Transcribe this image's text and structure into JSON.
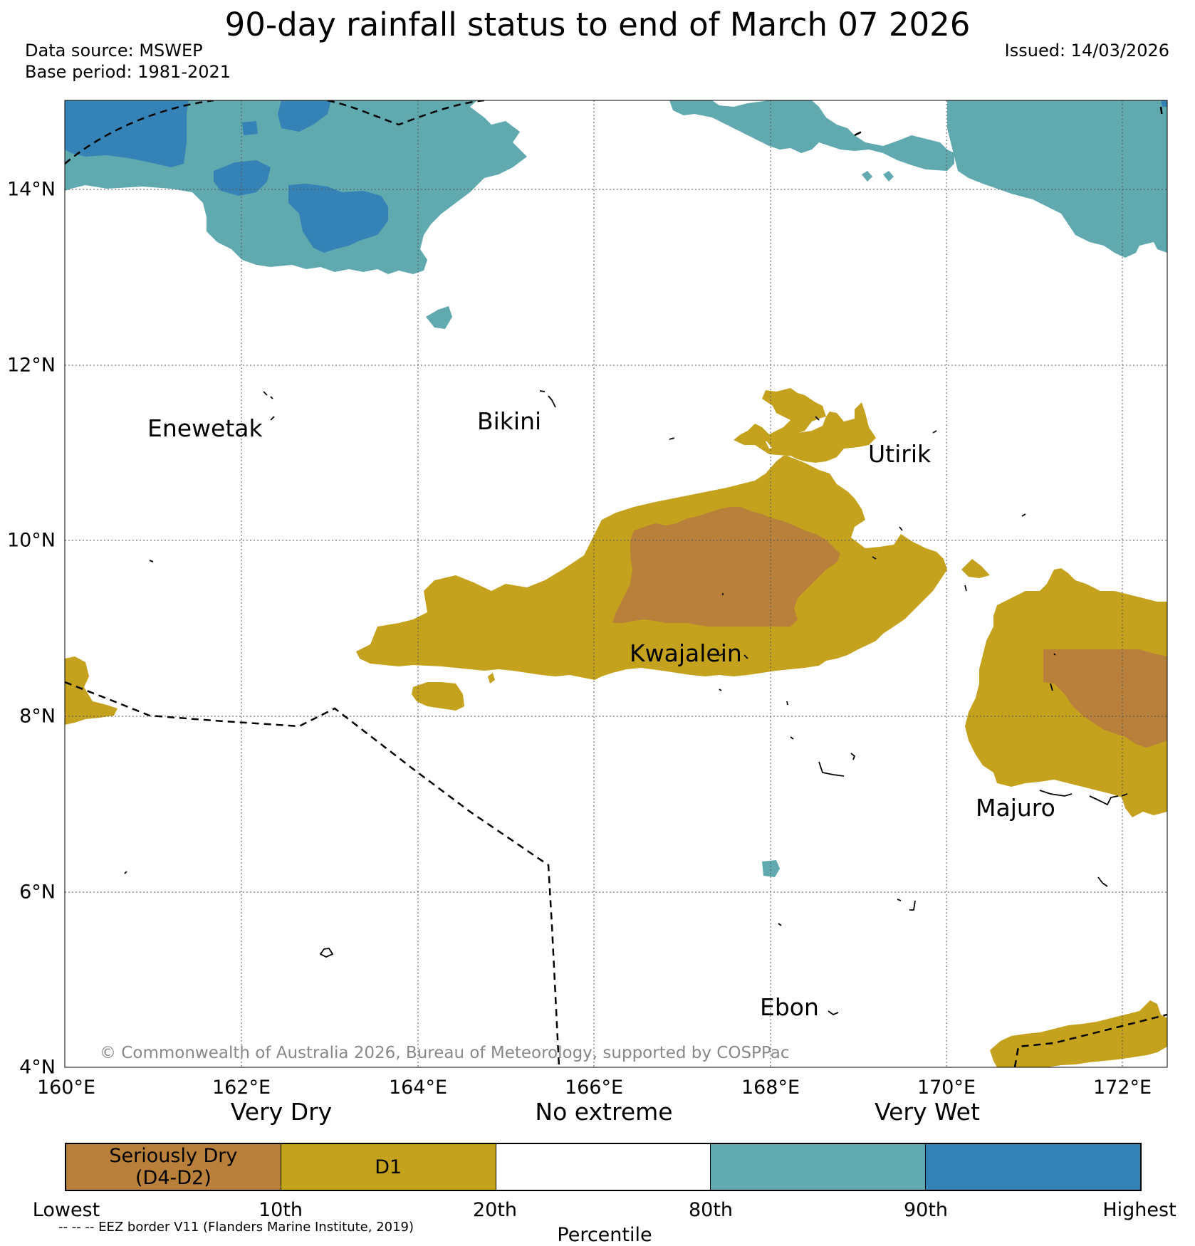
{
  "title": "90-day rainfall status to end of March 07 2026",
  "data_source": "Data source: MSWEP",
  "base_period": "Base period: 1981-2021",
  "issued": "Issued: 14/03/2026",
  "longitude_labels": [
    "160°E",
    "162°E",
    "164°E",
    "166°E",
    "168°E",
    "170°E",
    "172°E"
  ],
  "latitude_labels": [
    "14°N",
    "12°N",
    "10°N",
    "8°N",
    "6°N",
    "4°N"
  ],
  "places": [
    "Enewetak",
    "Bikini",
    "Utirik",
    "Kwajalein",
    "Majuro",
    "Ebon"
  ],
  "copyright": "© Commonwealth of Australia 2026, Bureau of Meteorology, supported by COSPPac",
  "categories": [
    "Very Dry",
    "No extreme",
    "Very Wet"
  ],
  "legend": {
    "segments": [
      {
        "label": "Seriously Dry\n(D4-D2)",
        "color": "#b8803a"
      },
      {
        "label": "D1",
        "color": "#c4a21e"
      },
      {
        "label": "",
        "color": "#ffffff"
      },
      {
        "label": "",
        "color": "#5fa9af"
      },
      {
        "label": "",
        "color": "#3583b6"
      }
    ],
    "ticks": [
      "Lowest",
      "10th",
      "20th",
      "80th",
      "90th",
      "Highest"
    ],
    "axis_label": "Percentile"
  },
  "eez_note": "-- -- -- EEZ border V11 (Flanders Marine Institute, 2019)",
  "colors": {
    "seriously_dry": "#b8803a",
    "d1": "#c4a21e",
    "wet": "#5fa9af",
    "very_wet": "#3583b6",
    "grid": "#555555"
  }
}
